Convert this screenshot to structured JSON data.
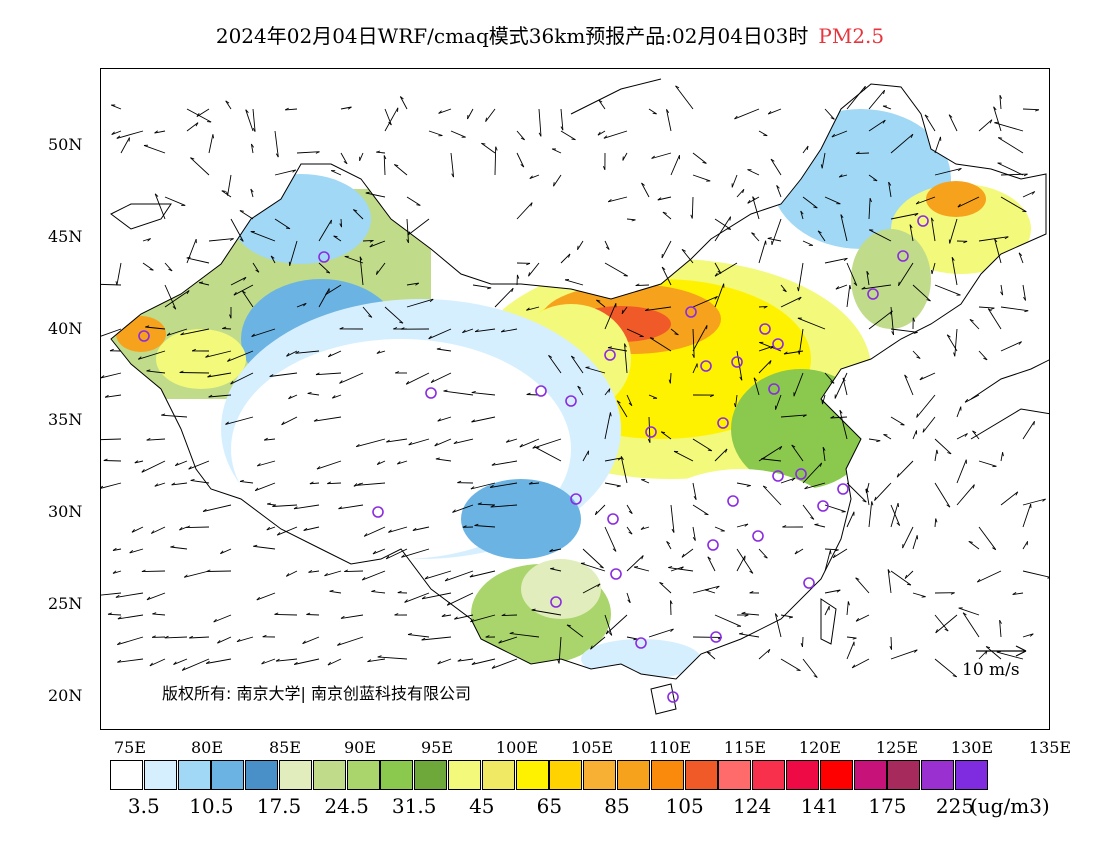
{
  "title": {
    "text": "2024年02月04日WRF/cmaq模式36km预报产品:02月04日03时",
    "pollutant": "PM2.5"
  },
  "map": {
    "lat_labels": [
      "50N",
      "45N",
      "40N",
      "35N",
      "30N",
      "25N",
      "20N"
    ],
    "lon_labels": [
      "75E",
      "80E",
      "85E",
      "90E",
      "95E",
      "100E",
      "105E",
      "110E",
      "115E",
      "120E",
      "125E",
      "130E",
      "135E"
    ],
    "copyright": "版权所有: 南京大学| 南京创蓝科技有限公司",
    "wind_reference": "10 m/s"
  },
  "legend": {
    "colors": [
      "#ffffff",
      "#d6efff",
      "#a0d8f5",
      "#6bb3e3",
      "#4a90c8",
      "#e1edbc",
      "#c0dc8a",
      "#a9d56c",
      "#8bc84e",
      "#6ea73a",
      "#f3f97a",
      "#f0e964",
      "#fff200",
      "#ffd200",
      "#f7b034",
      "#f7a21c",
      "#f98a0c",
      "#f05a28",
      "#ff6a6a",
      "#f8304c",
      "#ee0a45",
      "#ff0000",
      "#c7127a",
      "#a72a5c",
      "#9b30d0",
      "#7f2ce0"
    ],
    "tick_labels": [
      "3.5",
      "10.5",
      "17.5",
      "24.5",
      "31.5",
      "45",
      "65",
      "85",
      "105",
      "124",
      "141",
      "175",
      "225"
    ],
    "unit": "(ug/m3)"
  }
}
